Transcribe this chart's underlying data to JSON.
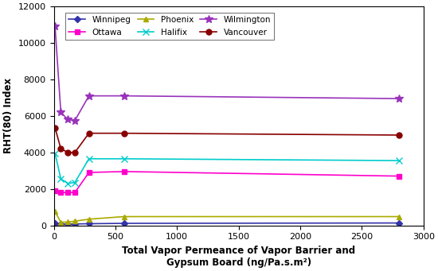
{
  "xlabel": "Total Vapor Permeance of Vapor Barrier and\nGypsum Board (ng/Pa.s.m²)",
  "ylabel": "RHT(80) Index",
  "xlim": [
    0,
    3000
  ],
  "ylim": [
    0,
    12000
  ],
  "xticks": [
    0,
    500,
    1000,
    1500,
    2000,
    2500,
    3000
  ],
  "yticks": [
    0,
    2000,
    4000,
    6000,
    8000,
    10000,
    12000
  ],
  "series": {
    "Winnipeg": {
      "x": [
        10,
        57,
        114,
        171,
        285,
        570,
        2800
      ],
      "y": [
        100,
        75,
        65,
        75,
        90,
        110,
        130
      ],
      "color": "#3333AA",
      "marker": "D",
      "markersize": 4,
      "linewidth": 1.2
    },
    "Ottawa": {
      "x": [
        10,
        57,
        114,
        171,
        285,
        570,
        2800
      ],
      "y": [
        1900,
        1800,
        1800,
        1800,
        2900,
        2950,
        2700
      ],
      "color": "#FF00CC",
      "marker": "s",
      "markersize": 5,
      "linewidth": 1.2
    },
    "Phoenix": {
      "x": [
        10,
        57,
        114,
        171,
        285,
        570,
        2800
      ],
      "y": [
        750,
        175,
        180,
        230,
        340,
        480,
        480
      ],
      "color": "#AAAA00",
      "marker": "^",
      "markersize": 5,
      "linewidth": 1.2
    },
    "Halifix": {
      "x": [
        10,
        57,
        114,
        171,
        285,
        570,
        2800
      ],
      "y": [
        3950,
        2550,
        2300,
        2350,
        3650,
        3650,
        3550
      ],
      "color": "#00CCCC",
      "marker": "x",
      "markersize": 6,
      "linewidth": 1.2
    },
    "Wilmington": {
      "x": [
        10,
        57,
        114,
        171,
        285,
        570,
        2800
      ],
      "y": [
        10900,
        6200,
        5800,
        5750,
        7100,
        7100,
        6950
      ],
      "color": "#9933BB",
      "marker": "*",
      "markersize": 7,
      "linewidth": 1.2
    },
    "Vancouver": {
      "x": [
        10,
        57,
        114,
        171,
        285,
        570,
        2800
      ],
      "y": [
        5350,
        4200,
        4000,
        4000,
        5050,
        5050,
        4950
      ],
      "color": "#880000",
      "marker": "o",
      "markersize": 5,
      "linewidth": 1.2
    }
  },
  "legend_order": [
    "Winnipeg",
    "Ottawa",
    "Phoenix",
    "Halifix",
    "Wilmington",
    "Vancouver"
  ],
  "background_color": "#FFFFFF"
}
